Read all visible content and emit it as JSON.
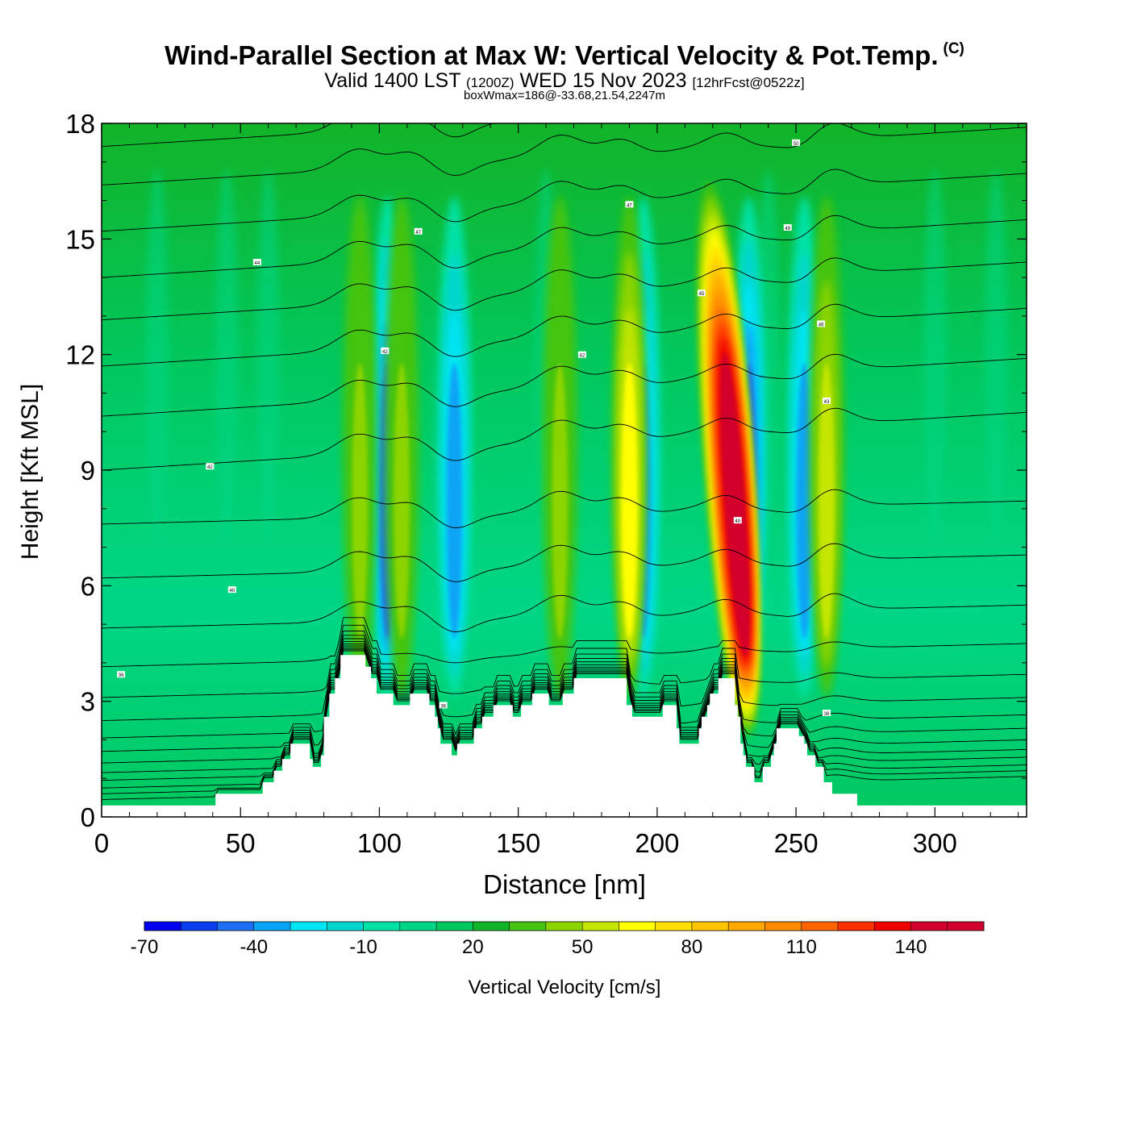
{
  "title": {
    "main": "Wind-Parallel Section at Max W: Vertical Velocity & Pot.Temp.",
    "copyright": "(C)",
    "valid_prefix": "Valid 1400 LST",
    "valid_utc": "(1200Z)",
    "valid_date": "WED 15 Nov 2023",
    "forecast": "[12hrFcst@0522z]",
    "box_info": "boxWmax=186@-33.68,21.54,2247m"
  },
  "chart_data": {
    "type": "heatmap",
    "xlabel": "Distance [nm]",
    "ylabel": "Height [Kft MSL]",
    "xlim": [
      0,
      333
    ],
    "ylim": [
      0,
      18
    ],
    "x_ticks": [
      "0",
      "50",
      "100",
      "150",
      "200",
      "250",
      "300"
    ],
    "y_ticks": [
      "0",
      "3",
      "6",
      "9",
      "12",
      "15",
      "18"
    ],
    "colorbar": {
      "label": "Vertical Velocity [cm/s]",
      "tick_labels": [
        "-70",
        "-40",
        "-10",
        "20",
        "50",
        "80",
        "110",
        "140"
      ],
      "bins": [
        -70,
        -60,
        -50,
        -40,
        -30,
        -20,
        -10,
        0,
        10,
        20,
        30,
        40,
        50,
        60,
        70,
        80,
        90,
        100,
        110,
        120,
        130,
        140,
        150,
        160
      ],
      "colors": [
        "#0000ee",
        "#0a3cf0",
        "#1e6ef2",
        "#0aa4f6",
        "#00e6f6",
        "#00d6ce",
        "#00e2a6",
        "#00d786",
        "#00c85e",
        "#12b428",
        "#44c410",
        "#8cd400",
        "#c4e600",
        "#ffff00",
        "#ffe000",
        "#ffc400",
        "#ffa800",
        "#ff8c00",
        "#ff6400",
        "#ff3000",
        "#ee0000",
        "#d2002c"
      ]
    },
    "updraft_columns": [
      {
        "x": 93,
        "peak": 45
      },
      {
        "x": 108,
        "peak": 40
      },
      {
        "x": 165,
        "peak": 45
      },
      {
        "x": 190,
        "peak": 60
      },
      {
        "x": 228,
        "peak": 145
      },
      {
        "x": 261,
        "peak": 55
      }
    ],
    "downdraft_columns": [
      {
        "x": 103,
        "peak": -50
      },
      {
        "x": 127,
        "peak": -40
      },
      {
        "x": 195,
        "peak": -45
      },
      {
        "x": 233,
        "peak": -50
      },
      {
        "x": 253,
        "peak": -45
      }
    ],
    "max_w": {
      "value": 186,
      "x": 228,
      "height": 7.8
    },
    "theta_isentrope_labels": [
      {
        "x": 7,
        "y": 3.7,
        "text": "36"
      },
      {
        "x": 47,
        "y": 5.9,
        "text": "40"
      },
      {
        "x": 39,
        "y": 9.1,
        "text": "42"
      },
      {
        "x": 56,
        "y": 14.4,
        "text": "44"
      },
      {
        "x": 102,
        "y": 12.1,
        "text": "42"
      },
      {
        "x": 114,
        "y": 15.2,
        "text": "47"
      },
      {
        "x": 123,
        "y": 2.9,
        "text": "36"
      },
      {
        "x": 173,
        "y": 12.0,
        "text": "42"
      },
      {
        "x": 190,
        "y": 15.9,
        "text": "47"
      },
      {
        "x": 216,
        "y": 13.6,
        "text": "45"
      },
      {
        "x": 229,
        "y": 7.7,
        "text": "40"
      },
      {
        "x": 247,
        "y": 15.3,
        "text": "49"
      },
      {
        "x": 250,
        "y": 17.5,
        "text": "50"
      },
      {
        "x": 259,
        "y": 12.8,
        "text": "46"
      },
      {
        "x": 261,
        "y": 10.8,
        "text": "43"
      },
      {
        "x": 261,
        "y": 2.7,
        "text": "38"
      }
    ],
    "terrain": [
      [
        0,
        0.3
      ],
      [
        40,
        0.3
      ],
      [
        41,
        0.6
      ],
      [
        57,
        0.6
      ],
      [
        58,
        0.9
      ],
      [
        61,
        0.9
      ],
      [
        62,
        1.2
      ],
      [
        64,
        1.2
      ],
      [
        65,
        1.5
      ],
      [
        67,
        1.5
      ],
      [
        68,
        1.9
      ],
      [
        74,
        1.9
      ],
      [
        75,
        1.5
      ],
      [
        76,
        1.3
      ],
      [
        78,
        1.3
      ],
      [
        79,
        1.6
      ],
      [
        80,
        2.6
      ],
      [
        81,
        2.6
      ],
      [
        82,
        3.2
      ],
      [
        83,
        3.2
      ],
      [
        84,
        3.6
      ],
      [
        85,
        3.6
      ],
      [
        86,
        4.2
      ],
      [
        94,
        4.2
      ],
      [
        95,
        3.9
      ],
      [
        97,
        3.6
      ],
      [
        99,
        3.2
      ],
      [
        101,
        3.2
      ],
      [
        102,
        3.2
      ],
      [
        104,
        3.2
      ],
      [
        105,
        2.9
      ],
      [
        110,
        2.9
      ],
      [
        111,
        3.2
      ],
      [
        117,
        3.2
      ],
      [
        118,
        2.9
      ],
      [
        120,
        2.6
      ],
      [
        121,
        2.3
      ],
      [
        122,
        1.9
      ],
      [
        125,
        1.9
      ],
      [
        126,
        1.6
      ],
      [
        127,
        1.6
      ],
      [
        128,
        1.9
      ],
      [
        133,
        1.9
      ],
      [
        134,
        2.3
      ],
      [
        136,
        2.3
      ],
      [
        137,
        2.6
      ],
      [
        140,
        2.6
      ],
      [
        141,
        2.9
      ],
      [
        147,
        2.9
      ],
      [
        148,
        2.6
      ],
      [
        150,
        2.6
      ],
      [
        151,
        2.9
      ],
      [
        154,
        2.9
      ],
      [
        155,
        3.2
      ],
      [
        160,
        3.2
      ],
      [
        161,
        2.9
      ],
      [
        165,
        2.9
      ],
      [
        166,
        3.2
      ],
      [
        169,
        3.2
      ],
      [
        170,
        3.6
      ],
      [
        188,
        3.6
      ],
      [
        189,
        2.9
      ],
      [
        190,
        2.9
      ],
      [
        191,
        2.6
      ],
      [
        201,
        2.6
      ],
      [
        202,
        2.9
      ],
      [
        206,
        2.9
      ],
      [
        207,
        2.3
      ],
      [
        208,
        1.9
      ],
      [
        214,
        1.9
      ],
      [
        215,
        2.3
      ],
      [
        216,
        2.6
      ],
      [
        218,
        2.9
      ],
      [
        219,
        3.2
      ],
      [
        221,
        3.2
      ],
      [
        222,
        3.6
      ],
      [
        227,
        3.6
      ],
      [
        228,
        2.9
      ],
      [
        229,
        2.6
      ],
      [
        230,
        1.9
      ],
      [
        231,
        1.6
      ],
      [
        232,
        1.3
      ],
      [
        234,
        1.3
      ],
      [
        235,
        0.9
      ],
      [
        237,
        0.9
      ],
      [
        238,
        1.3
      ],
      [
        240,
        1.3
      ],
      [
        241,
        1.6
      ],
      [
        242,
        1.9
      ],
      [
        243,
        2.3
      ],
      [
        250,
        2.3
      ],
      [
        251,
        2.1
      ],
      [
        253,
        1.9
      ],
      [
        254,
        1.6
      ],
      [
        256,
        1.6
      ],
      [
        257,
        1.3
      ],
      [
        259,
        1.3
      ],
      [
        260,
        0.9
      ],
      [
        262,
        0.9
      ],
      [
        263,
        0.6
      ],
      [
        271,
        0.6
      ],
      [
        272,
        0.3
      ],
      [
        333,
        0.3
      ]
    ]
  }
}
